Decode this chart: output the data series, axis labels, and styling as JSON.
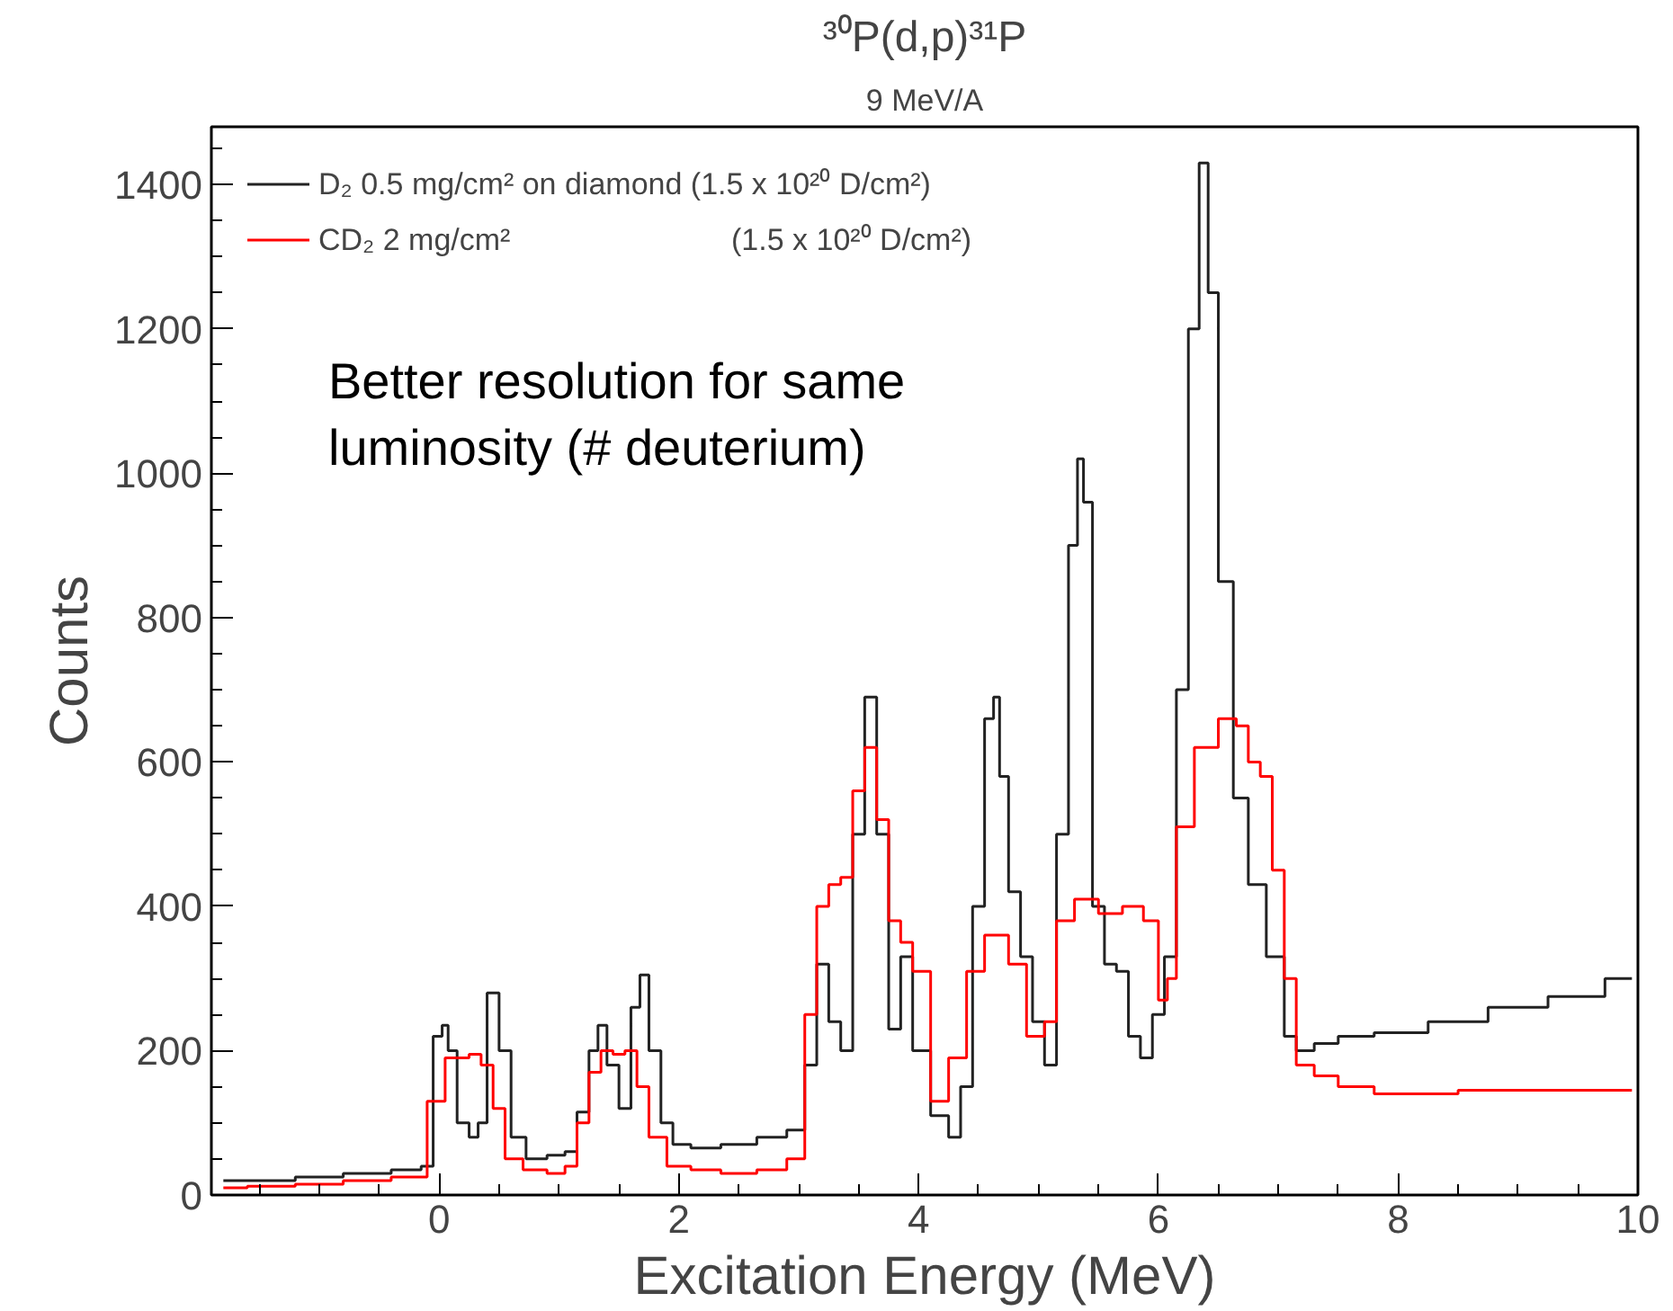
{
  "chart_data": {
    "type": "step",
    "title": "³⁰P(d,p)³¹P",
    "subtitle": "9 MeV/A",
    "xlabel": "Excitation Energy (MeV)",
    "ylabel": "Counts",
    "annotations": [
      "Better resolution for same\nluminosity (# deuterium)"
    ],
    "x": [
      -1.8,
      -1.4,
      -1.0,
      -0.6,
      -0.2,
      -0.1,
      0.0,
      0.05,
      0.1,
      0.2,
      0.3,
      0.35,
      0.45,
      0.55,
      0.65,
      0.8,
      1.0,
      1.1,
      1.2,
      1.3,
      1.35,
      1.45,
      1.55,
      1.65,
      1.7,
      1.8,
      1.9,
      2.0,
      2.2,
      2.5,
      2.8,
      3.0,
      3.1,
      3.2,
      3.3,
      3.4,
      3.5,
      3.6,
      3.7,
      3.8,
      3.9,
      4.0,
      4.2,
      4.3,
      4.4,
      4.5,
      4.6,
      4.65,
      4.7,
      4.8,
      4.9,
      5.0,
      5.1,
      5.2,
      5.3,
      5.35,
      5.4,
      5.5,
      5.6,
      5.7,
      5.8,
      5.9,
      6.0,
      6.1,
      6.2,
      6.3,
      6.38,
      6.45,
      6.55,
      6.7,
      6.8,
      7.0,
      7.1,
      7.2,
      7.4,
      7.6,
      8.0,
      8.5,
      9.0,
      9.5,
      9.95
    ],
    "series": [
      {
        "name": "D₂ 0.5 mg/cm² on diamond (1.5 x 10²⁰ D/cm²)",
        "color": "#222222",
        "values": [
          20,
          20,
          25,
          30,
          35,
          40,
          220,
          235,
          200,
          100,
          80,
          100,
          280,
          200,
          80,
          50,
          55,
          60,
          115,
          200,
          235,
          180,
          120,
          260,
          305,
          200,
          100,
          70,
          65,
          70,
          80,
          90,
          180,
          320,
          240,
          200,
          500,
          690,
          500,
          230,
          330,
          200,
          110,
          80,
          150,
          400,
          660,
          690,
          580,
          420,
          330,
          240,
          180,
          500,
          900,
          1020,
          960,
          400,
          320,
          310,
          220,
          190,
          250,
          330,
          700,
          1200,
          1430,
          1250,
          850,
          550,
          430,
          330,
          220,
          200,
          210,
          220,
          225,
          240,
          260,
          275,
          300
        ]
      },
      {
        "name": "CD₂ 2 mg/cm²                          (1.5 x 10²⁰ D/cm²)",
        "color": "#ff0000",
        "x": [
          -1.8,
          -1.4,
          -1.0,
          -0.6,
          -0.2,
          0.0,
          0.1,
          0.2,
          0.3,
          0.4,
          0.5,
          0.6,
          0.8,
          1.0,
          1.1,
          1.2,
          1.3,
          1.4,
          1.5,
          1.6,
          1.7,
          1.8,
          2.0,
          2.2,
          2.5,
          2.8,
          3.0,
          3.1,
          3.2,
          3.3,
          3.4,
          3.5,
          3.6,
          3.7,
          3.8,
          3.9,
          4.0,
          4.2,
          4.3,
          4.5,
          4.6,
          4.7,
          4.8,
          5.0,
          5.1,
          5.2,
          5.4,
          5.6,
          5.8,
          5.95,
          6.05,
          6.1,
          6.2,
          6.4,
          6.6,
          6.7,
          6.8,
          6.9,
          7.0,
          7.1,
          7.2,
          7.4,
          7.6,
          8.0,
          9.0,
          9.95
        ],
        "values": [
          10,
          12,
          15,
          20,
          25,
          130,
          190,
          190,
          195,
          180,
          120,
          50,
          35,
          30,
          40,
          100,
          170,
          200,
          195,
          200,
          150,
          80,
          40,
          35,
          30,
          35,
          50,
          250,
          400,
          430,
          440,
          560,
          620,
          520,
          380,
          350,
          310,
          130,
          190,
          310,
          360,
          360,
          320,
          220,
          240,
          380,
          410,
          390,
          400,
          380,
          270,
          300,
          510,
          620,
          660,
          650,
          600,
          580,
          450,
          300,
          180,
          165,
          150,
          140,
          145,
          145
        ]
      }
    ],
    "xlim": [
      -1.9,
      10
    ],
    "ylim": [
      0,
      1480
    ],
    "xticks": [
      0,
      2,
      4,
      6,
      8,
      10
    ],
    "yticks": [
      0,
      200,
      400,
      600,
      800,
      1000,
      1200,
      1400
    ],
    "legend": "top left",
    "grid": false,
    "line_style": "solid"
  }
}
